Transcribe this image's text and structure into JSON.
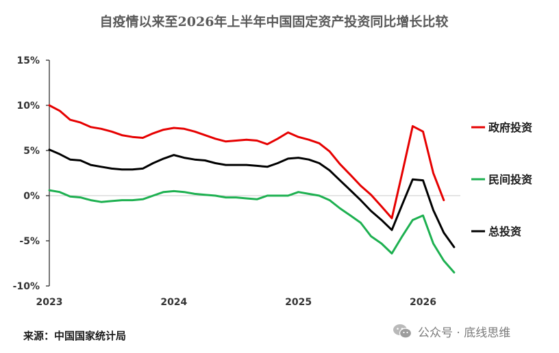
{
  "chart_data": {
    "type": "line",
    "title": "自疫情以来至2026年上半年中国固定资产投资同比增长比较",
    "source": "来源：中国国家统计局",
    "watermark": "公众号 · 底线思维",
    "x_tick_labels": [
      "2023",
      "2024",
      "2025",
      "2026"
    ],
    "x_ticks": [
      2023,
      2024,
      2025,
      2026
    ],
    "xlim": [
      2023,
      2026.3
    ],
    "y_tick_labels": [
      "15%",
      "10%",
      "5%",
      "0%",
      "-5%",
      "-10%"
    ],
    "y_ticks": [
      15,
      10,
      5,
      0,
      -5,
      -10
    ],
    "ylim": [
      -10,
      15
    ],
    "grid": false,
    "legend_position": "right",
    "x": [
      2023.0,
      2023.083,
      2023.167,
      2023.25,
      2023.333,
      2023.417,
      2023.5,
      2023.583,
      2023.667,
      2023.75,
      2023.833,
      2023.917,
      2024.0,
      2024.083,
      2024.167,
      2024.25,
      2024.333,
      2024.417,
      2024.5,
      2024.583,
      2024.667,
      2024.75,
      2024.833,
      2024.917,
      2025.0,
      2025.083,
      2025.167,
      2025.25,
      2025.333,
      2025.417,
      2025.5,
      2025.583,
      2025.667,
      2025.75,
      2025.833,
      2025.917,
      2026.0,
      2026.083,
      2026.167,
      2026.25
    ],
    "series": [
      {
        "name": "政府投资",
        "color": "#e60000",
        "values": [
          10.0,
          9.4,
          8.4,
          8.1,
          7.6,
          7.4,
          7.1,
          6.7,
          6.5,
          6.4,
          6.9,
          7.3,
          7.5,
          7.4,
          7.1,
          6.7,
          6.3,
          6.0,
          6.1,
          6.2,
          6.1,
          5.7,
          6.3,
          7.0,
          6.5,
          6.2,
          5.8,
          4.9,
          3.5,
          2.3,
          1.1,
          0.1,
          -1.2,
          -2.5,
          2.5,
          7.7,
          7.1,
          2.5,
          -0.5,
          null
        ]
      },
      {
        "name": "民间投资",
        "color": "#1db050",
        "values": [
          0.6,
          0.4,
          -0.1,
          -0.2,
          -0.5,
          -0.7,
          -0.6,
          -0.5,
          -0.5,
          -0.4,
          0.0,
          0.4,
          0.5,
          0.4,
          0.2,
          0.1,
          0.0,
          -0.2,
          -0.2,
          -0.3,
          -0.4,
          0.0,
          0.0,
          0.0,
          0.4,
          0.2,
          0.0,
          -0.5,
          -1.4,
          -2.2,
          -3.0,
          -4.5,
          -5.3,
          -6.4,
          -4.5,
          -2.7,
          -2.2,
          -5.3,
          -7.2,
          -8.5
        ]
      },
      {
        "name": "总投资",
        "color": "#000000",
        "values": [
          5.1,
          4.6,
          4.0,
          3.9,
          3.4,
          3.2,
          3.0,
          2.9,
          2.9,
          3.0,
          3.6,
          4.1,
          4.5,
          4.2,
          4.0,
          3.9,
          3.6,
          3.4,
          3.4,
          3.4,
          3.3,
          3.2,
          3.6,
          4.1,
          4.2,
          4.0,
          3.6,
          2.8,
          1.7,
          0.6,
          -0.5,
          -1.7,
          -2.7,
          -3.8,
          -1.0,
          1.8,
          1.7,
          -1.6,
          -4.1,
          -5.7
        ]
      }
    ]
  }
}
